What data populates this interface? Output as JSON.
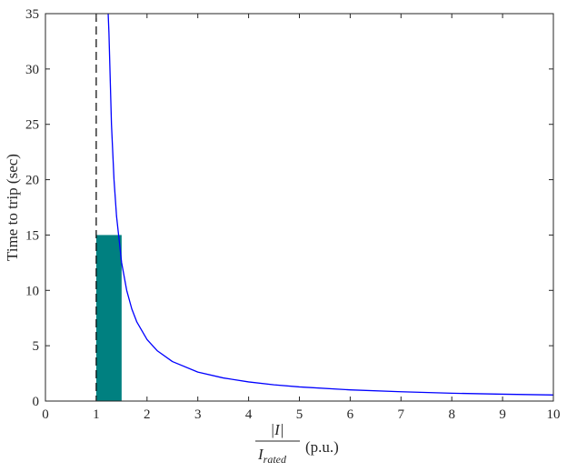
{
  "chart_data": {
    "type": "line",
    "title": "",
    "ylabel": "Time to trip (sec)",
    "xlabel": {
      "numerator": "|I|",
      "denominator_base": "I",
      "denominator_sub": "rated",
      "unit": "(p.u.)"
    },
    "xlim": [
      0,
      10
    ],
    "ylim": [
      0,
      35
    ],
    "xticks": [
      0,
      1,
      2,
      3,
      4,
      5,
      6,
      7,
      8,
      9,
      10
    ],
    "yticks": [
      0,
      5,
      10,
      15,
      20,
      25,
      30,
      35
    ],
    "grid": false,
    "legend": "none",
    "series": [
      {
        "kind": "curve",
        "color": "#0000ff",
        "x": [
          1.235,
          1.25,
          1.3,
          1.35,
          1.4,
          1.5,
          1.6,
          1.7,
          1.8,
          2.0,
          2.2,
          2.5,
          3.0,
          3.5,
          4.0,
          4.5,
          5.0,
          6.0,
          7.0,
          8.0,
          9.0,
          10.0
        ],
        "y": [
          35.0,
          33.3,
          25.0,
          20.0,
          16.7,
          12.5,
          10.0,
          8.33,
          7.14,
          5.56,
          4.55,
          3.57,
          2.62,
          2.09,
          1.73,
          1.47,
          1.28,
          1.01,
          0.84,
          0.71,
          0.62,
          0.55
        ]
      },
      {
        "kind": "vertical-dashed-line",
        "color": "#000000",
        "x": 1.0
      },
      {
        "kind": "filled-rectangle",
        "color": "#008080",
        "x_range": [
          1.0,
          1.5
        ],
        "y_range": [
          0,
          15
        ]
      }
    ]
  }
}
